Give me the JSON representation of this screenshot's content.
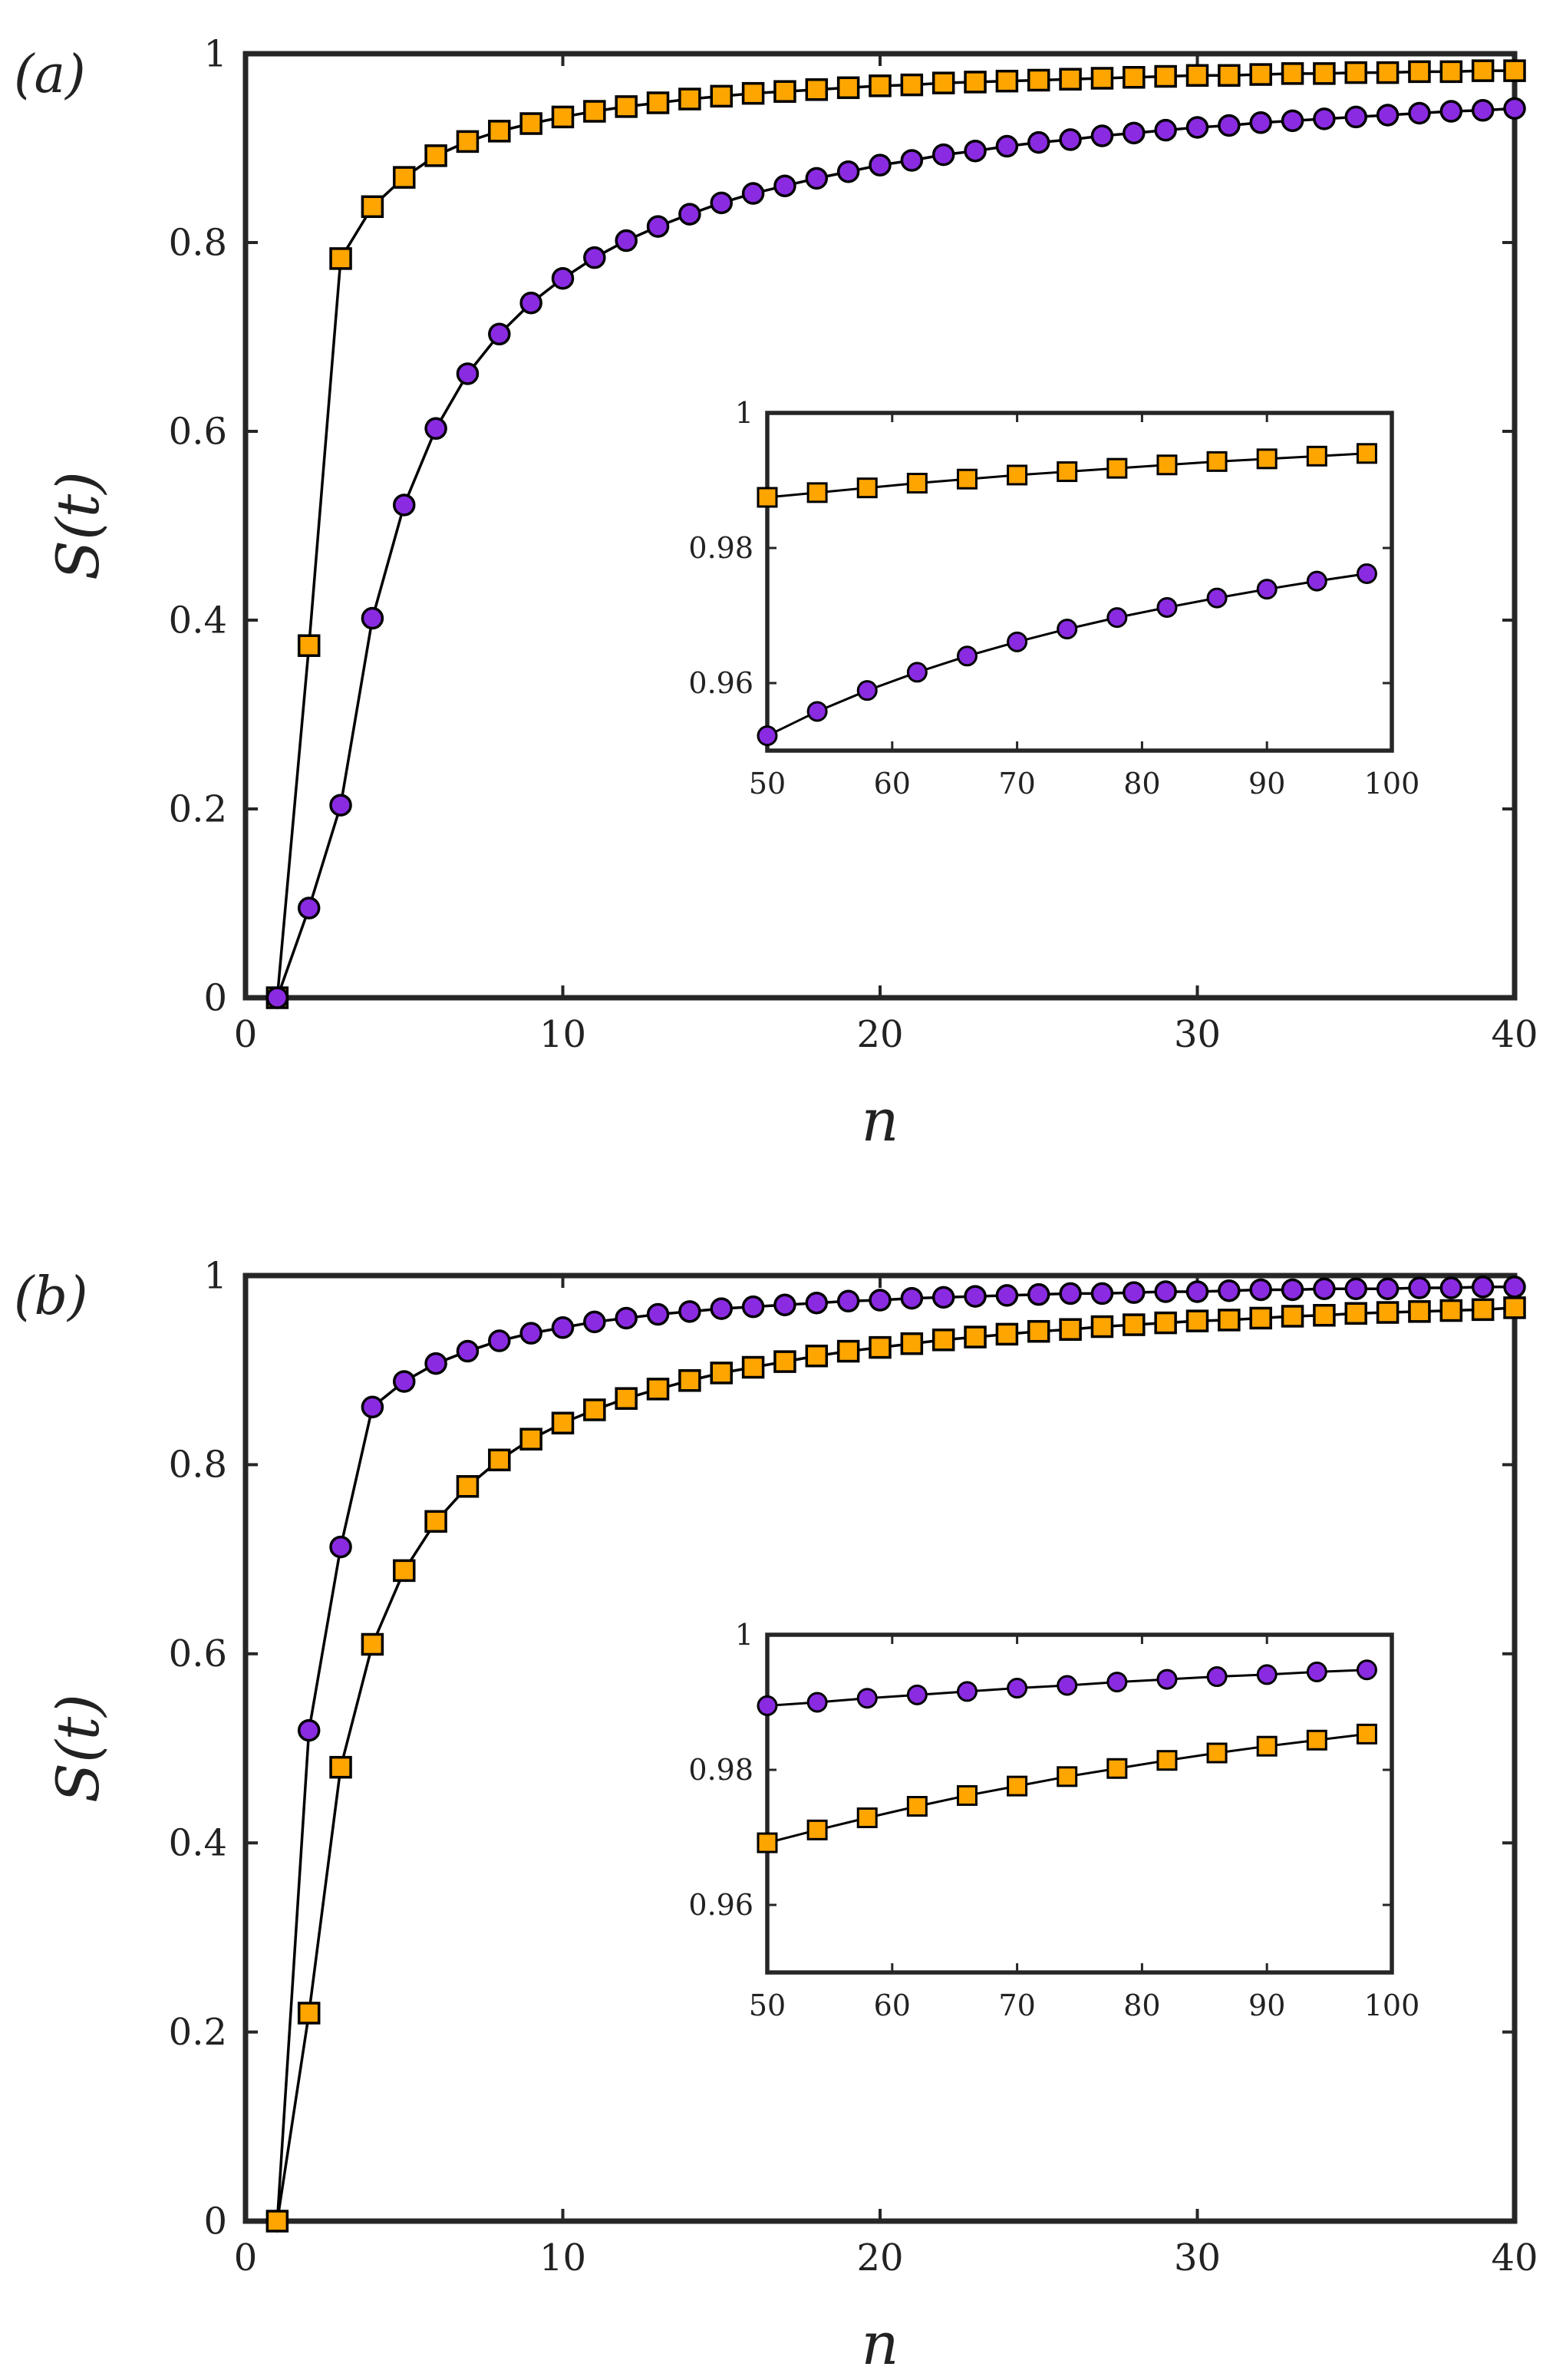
{
  "colors": {
    "square_fill": "#ffa500",
    "circle_fill": "#8a2be2",
    "frame": "#262626",
    "line": "#000000"
  },
  "chart_data": [
    {
      "type": "line",
      "panel_label": "(a)",
      "xlabel": "n",
      "ylabel": "S(t)",
      "xlim": [
        0,
        40
      ],
      "ylim": [
        0,
        1
      ],
      "xticks": [
        "0",
        "10",
        "20",
        "30",
        "40"
      ],
      "yticks": [
        "0",
        "0.2",
        "0.4",
        "0.6",
        "0.8",
        "1"
      ],
      "x": [
        1,
        2,
        3,
        4,
        5,
        6,
        7,
        8,
        9,
        10,
        11,
        12,
        13,
        14,
        15,
        16,
        17,
        18,
        19,
        20,
        21,
        22,
        23,
        24,
        25,
        26,
        27,
        28,
        29,
        30,
        31,
        32,
        33,
        34,
        35,
        36,
        37,
        38,
        39,
        40
      ],
      "series": [
        {
          "name": "square series",
          "marker": "square",
          "values": [
            0,
            0.373,
            0.783,
            0.838,
            0.869,
            0.892,
            0.907,
            0.918,
            0.926,
            0.933,
            0.939,
            0.944,
            0.948,
            0.952,
            0.955,
            0.958,
            0.96,
            0.962,
            0.964,
            0.966,
            0.967,
            0.969,
            0.97,
            0.971,
            0.972,
            0.973,
            0.974,
            0.975,
            0.976,
            0.977,
            0.977,
            0.978,
            0.979,
            0.979,
            0.98,
            0.98,
            0.981,
            0.981,
            0.982,
            0.982
          ]
        },
        {
          "name": "circle series",
          "marker": "circle",
          "values": [
            0,
            0.095,
            0.204,
            0.402,
            0.522,
            0.603,
            0.661,
            0.703,
            0.736,
            0.762,
            0.784,
            0.802,
            0.817,
            0.83,
            0.842,
            0.852,
            0.86,
            0.868,
            0.875,
            0.882,
            0.887,
            0.893,
            0.897,
            0.902,
            0.906,
            0.909,
            0.913,
            0.916,
            0.919,
            0.922,
            0.924,
            0.927,
            0.929,
            0.931,
            0.933,
            0.935,
            0.937,
            0.939,
            0.94,
            0.942
          ]
        }
      ],
      "inset": {
        "xlim": [
          50,
          100
        ],
        "ylim": [
          0.95,
          1
        ],
        "xticks": [
          "50",
          "60",
          "70",
          "80",
          "90",
          "100"
        ],
        "yticks": [
          "0.96",
          "0.98",
          "1"
        ],
        "x": [
          50,
          54,
          58,
          62,
          66,
          70,
          74,
          78,
          82,
          86,
          90,
          94,
          98
        ],
        "series": [
          {
            "name": "square series",
            "marker": "square",
            "values": [
              0.9875,
              0.9882,
              0.9889,
              0.9896,
              0.9902,
              0.9908,
              0.9913,
              0.9918,
              0.9923,
              0.9928,
              0.9932,
              0.9936,
              0.994
            ]
          },
          {
            "name": "circle series",
            "marker": "circle",
            "values": [
              0.9522,
              0.9558,
              0.9589,
              0.9616,
              0.964,
              0.9661,
              0.968,
              0.9697,
              0.9712,
              0.9726,
              0.9739,
              0.9751,
              0.9762
            ]
          }
        ]
      }
    },
    {
      "type": "line",
      "panel_label": "(b)",
      "xlabel": "n",
      "ylabel": "S(t)",
      "xlim": [
        0,
        40
      ],
      "ylim": [
        0,
        1
      ],
      "xticks": [
        "0",
        "10",
        "20",
        "30",
        "40"
      ],
      "yticks": [
        "0",
        "0.2",
        "0.4",
        "0.6",
        "0.8",
        "1"
      ],
      "x": [
        1,
        2,
        3,
        4,
        5,
        6,
        7,
        8,
        9,
        10,
        11,
        12,
        13,
        14,
        15,
        16,
        17,
        18,
        19,
        20,
        21,
        22,
        23,
        24,
        25,
        26,
        27,
        28,
        29,
        30,
        31,
        32,
        33,
        34,
        35,
        36,
        37,
        38,
        39,
        40
      ],
      "series": [
        {
          "name": "circle series",
          "marker": "circle",
          "values": [
            0,
            0.519,
            0.713,
            0.861,
            0.888,
            0.907,
            0.92,
            0.931,
            0.939,
            0.945,
            0.951,
            0.955,
            0.959,
            0.962,
            0.965,
            0.967,
            0.969,
            0.971,
            0.973,
            0.974,
            0.976,
            0.977,
            0.978,
            0.979,
            0.98,
            0.981,
            0.981,
            0.982,
            0.983,
            0.983,
            0.984,
            0.985,
            0.985,
            0.986,
            0.986,
            0.986,
            0.987,
            0.987,
            0.988,
            0.988
          ]
        },
        {
          "name": "square series",
          "marker": "square",
          "values": [
            0,
            0.22,
            0.48,
            0.61,
            0.688,
            0.74,
            0.777,
            0.805,
            0.827,
            0.844,
            0.858,
            0.87,
            0.88,
            0.889,
            0.897,
            0.903,
            0.909,
            0.915,
            0.92,
            0.924,
            0.928,
            0.932,
            0.935,
            0.938,
            0.941,
            0.943,
            0.946,
            0.948,
            0.95,
            0.952,
            0.953,
            0.955,
            0.957,
            0.958,
            0.96,
            0.961,
            0.962,
            0.963,
            0.964,
            0.966
          ]
        }
      ],
      "inset": {
        "xlim": [
          50,
          100
        ],
        "ylim": [
          0.95,
          1
        ],
        "xticks": [
          "50",
          "60",
          "70",
          "80",
          "90",
          "100"
        ],
        "yticks": [
          "0.96",
          "0.98",
          "1"
        ],
        "x": [
          50,
          54,
          58,
          62,
          66,
          70,
          74,
          78,
          82,
          86,
          90,
          94,
          98
        ],
        "series": [
          {
            "name": "circle series",
            "marker": "circle",
            "values": [
              0.9895,
              0.99,
              0.9906,
              0.9911,
              0.9916,
              0.9921,
              0.9925,
              0.993,
              0.9934,
              0.9938,
              0.9941,
              0.9945,
              0.9948
            ]
          },
          {
            "name": "square series",
            "marker": "square",
            "values": [
              0.9692,
              0.9711,
              0.9729,
              0.9746,
              0.9762,
              0.9776,
              0.979,
              0.9802,
              0.9814,
              0.9825,
              0.9835,
              0.9844,
              0.9853
            ]
          }
        ]
      }
    }
  ]
}
